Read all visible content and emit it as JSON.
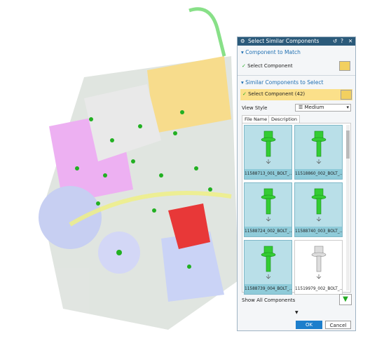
{
  "dialog": {
    "title": "Select Similar Components",
    "section1": {
      "header": "Component to Match",
      "select": "Select Component"
    },
    "section2": {
      "header": "Similar Components to Select",
      "select": "Select Component (42)",
      "view_style_label": "View Style",
      "view_style": "Medium",
      "tabs": [
        "File Name",
        "Description"
      ],
      "tiles": [
        {
          "label": "11588713_001_BOLT_..."
        },
        {
          "label": "11518860_002_BOLT_..."
        },
        {
          "label": "11588724_002_BOLT_..."
        },
        {
          "label": "11588740_003_BOLT_..."
        },
        {
          "label": "11588739_004_BOLT_..."
        },
        {
          "label": "11519979_002_BOLT_..."
        }
      ],
      "show_all": "Show All Components"
    },
    "buttons": {
      "ok": "OK",
      "cancel": "Cancel"
    }
  }
}
